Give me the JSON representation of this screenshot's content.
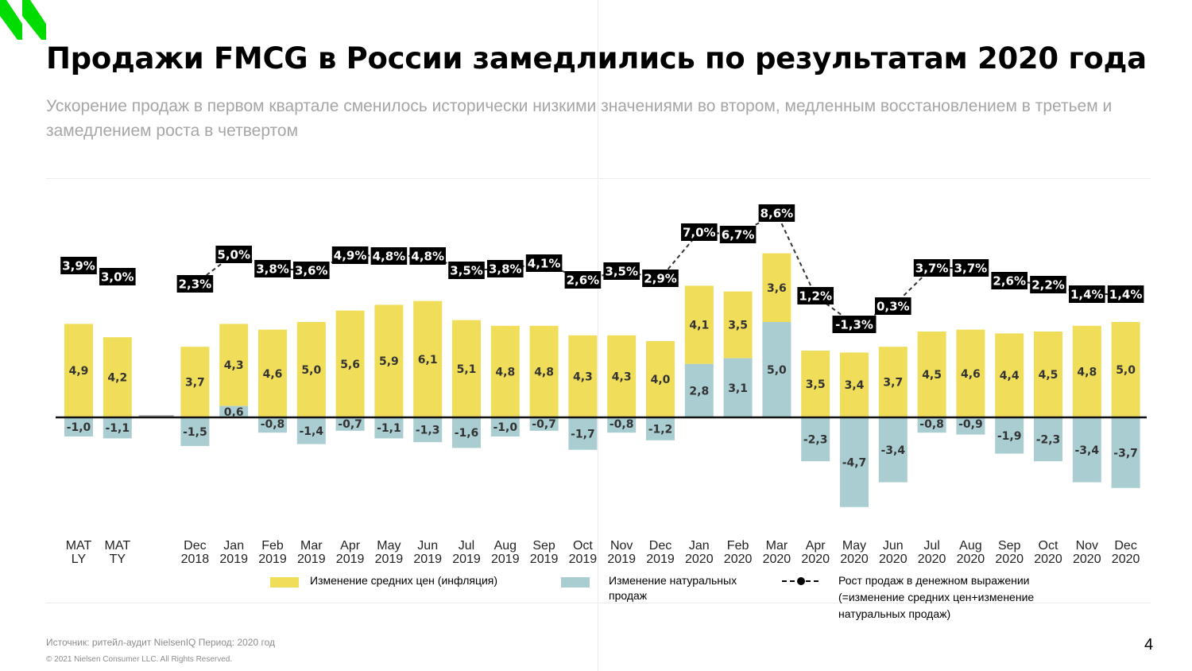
{
  "title": "Продажи FMCG в России замедлились по результатам 2020 года",
  "subtitle": "Ускорение продаж в первом квартале сменилось исторически низкими значениями во втором, медленным восстановлением в третьем и замедлением роста в четвертом",
  "colors": {
    "inflation": "#f0de5a",
    "volume": "#a9cdd1",
    "logo": "#00dc00",
    "total_label_bg": "#000000"
  },
  "chart_data": {
    "type": "bar",
    "stacked": true,
    "y_unit": "%",
    "categories": [
      [
        "MAT",
        "LY"
      ],
      [
        "MAT",
        "TY"
      ],
      [
        "",
        ""
      ],
      [
        "Dec",
        "2018"
      ],
      [
        "Jan",
        "2019"
      ],
      [
        "Feb",
        "2019"
      ],
      [
        "Mar",
        "2019"
      ],
      [
        "Apr",
        "2019"
      ],
      [
        "May",
        "2019"
      ],
      [
        "Jun",
        "2019"
      ],
      [
        "Jul",
        "2019"
      ],
      [
        "Aug",
        "2019"
      ],
      [
        "Sep",
        "2019"
      ],
      [
        "Oct",
        "2019"
      ],
      [
        "Nov",
        "2019"
      ],
      [
        "Dec",
        "2019"
      ],
      [
        "Jan",
        "2020"
      ],
      [
        "Feb",
        "2020"
      ],
      [
        "Mar",
        "2020"
      ],
      [
        "Apr",
        "2020"
      ],
      [
        "May",
        "2020"
      ],
      [
        "Jun",
        "2020"
      ],
      [
        "Jul",
        "2020"
      ],
      [
        "Aug",
        "2020"
      ],
      [
        "Sep",
        "2020"
      ],
      [
        "Oct",
        "2020"
      ],
      [
        "Nov",
        "2020"
      ],
      [
        "Dec",
        "2020"
      ]
    ],
    "series": [
      {
        "name": "Изменение средних цен (инфляция)",
        "key": "inflation",
        "values": [
          4.9,
          4.2,
          null,
          3.7,
          4.3,
          4.6,
          5.0,
          5.6,
          5.9,
          6.1,
          5.1,
          4.8,
          4.8,
          4.3,
          4.3,
          4.0,
          4.1,
          3.5,
          3.6,
          3.5,
          3.4,
          3.7,
          4.5,
          4.6,
          4.4,
          4.5,
          4.8,
          5.0
        ],
        "labels": [
          "4,9",
          "4,2",
          "",
          "3,7",
          "4,3",
          "4,6",
          "5,0",
          "5,6",
          "5,9",
          "6,1",
          "5,1",
          "4,8",
          "4,8",
          "4,3",
          "4,3",
          "4,0",
          "4,1",
          "3,5",
          "3,6",
          "3,5",
          "3,4",
          "3,7",
          "4,5",
          "4,6",
          "4,4",
          "4,5",
          "4,8",
          "5,0"
        ]
      },
      {
        "name": "Изменение натуральных продаж",
        "key": "volume",
        "values": [
          -1.0,
          -1.1,
          null,
          -1.5,
          0.6,
          -0.8,
          -1.4,
          -0.7,
          -1.1,
          -1.3,
          -1.6,
          -1.0,
          -0.7,
          -1.7,
          -0.8,
          -1.2,
          2.8,
          3.1,
          5.0,
          -2.3,
          -4.7,
          -3.4,
          -0.8,
          -0.9,
          -1.9,
          -2.3,
          -3.4,
          -3.7
        ],
        "labels": [
          "-1,0",
          "-1,1",
          "",
          "-1,5",
          "0,6",
          "-0,8",
          "-1,4",
          "-0,7",
          "-1,1",
          "-1,3",
          "-1,6",
          "-1,0",
          "-0,7",
          "-1,7",
          "-0,8",
          "-1,2",
          "2,8",
          "3,1",
          "5,0",
          "-2,3",
          "-4,7",
          "-3,4",
          "-0,8",
          "-0,9",
          "-1,9",
          "-2,3",
          "-3,4",
          "-3,7"
        ]
      },
      {
        "name": "Рост продаж в денежном выражении (=изменение средних цен+изменение натуральных продаж)",
        "key": "total",
        "type": "line",
        "values": [
          3.9,
          3.0,
          null,
          2.3,
          5.0,
          3.8,
          3.6,
          4.9,
          4.8,
          4.8,
          3.5,
          3.8,
          4.1,
          2.6,
          3.5,
          2.9,
          7.0,
          6.7,
          8.6,
          1.2,
          -1.3,
          0.3,
          3.7,
          3.7,
          2.6,
          2.2,
          1.4,
          1.4
        ],
        "labels": [
          "3,9%",
          "3,0%",
          "",
          "2,3%",
          "5,0%",
          "3,8%",
          "3,6%",
          "4,9%",
          "4,8%",
          "4,8%",
          "3,5%",
          "3,8%",
          "4,1%",
          "2,6%",
          "3,5%",
          "2,9%",
          "7,0%",
          "6,7%",
          "8,6%",
          "1,2%",
          "-1,3%",
          "0,3%",
          "3,7%",
          "3,7%",
          "2,6%",
          "2,2%",
          "1,4%",
          "1,4%"
        ]
      }
    ],
    "ylim": [
      -5,
      9.5
    ],
    "legend_position": "bottom"
  },
  "legend": {
    "inflation": "Изменение средних цен (инфляция)",
    "volume_line1": "Изменение натуральных",
    "volume_line2": "продаж",
    "total_line1": "Рост продаж в денежном выражении",
    "total_line2": "(=изменение средних цен+изменение",
    "total_line3": "натуральных продаж)"
  },
  "footer": {
    "source": "Источник: ритейл-аудит NielsenIQ Период: 2020 год",
    "copyright": "© 2021 Nielsen Consumer LLC. All Rights Reserved."
  },
  "page_number": "4"
}
